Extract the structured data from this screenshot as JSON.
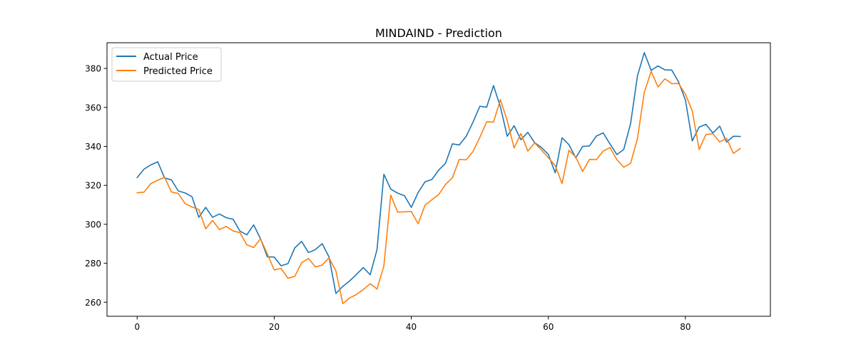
{
  "chart_data": {
    "type": "line",
    "title": "MINDAIND - Prediction",
    "xlabel": "",
    "ylabel": "",
    "xlim": [
      -4.4,
      92.4
    ],
    "ylim": [
      252.8,
      393.2
    ],
    "xticks": [
      0,
      20,
      40,
      60,
      80
    ],
    "yticks": [
      260,
      280,
      300,
      320,
      340,
      360,
      380
    ],
    "grid": false,
    "legend": {
      "placement": "top-left"
    },
    "series": [
      {
        "name": "Actual Price",
        "color": "#1f77b4",
        "x": [
          0,
          1,
          2,
          3,
          4,
          5,
          6,
          7,
          8,
          9,
          10,
          11,
          12,
          13,
          14,
          15,
          16,
          17,
          18,
          19,
          20,
          21,
          22,
          23,
          24,
          25,
          26,
          27,
          28,
          29,
          30,
          31,
          32,
          33,
          34,
          35,
          36,
          37,
          38,
          39,
          40,
          41,
          42,
          43,
          44,
          45,
          46,
          47,
          48,
          49,
          50,
          51,
          52,
          53,
          54,
          55,
          56,
          57,
          58,
          59,
          60,
          61,
          62,
          63,
          64,
          65,
          66,
          67,
          68,
          69,
          70,
          71,
          72,
          73,
          74,
          75,
          76,
          77,
          78,
          79,
          80,
          81,
          82,
          83,
          84,
          85,
          86,
          87,
          88
        ],
        "values": [
          324,
          328.3,
          330.5,
          332.1,
          323.8,
          322.8,
          317.1,
          316.1,
          314.2,
          303.6,
          308.7,
          303.6,
          305.3,
          303.4,
          302.6,
          296.5,
          294.6,
          299.7,
          292.6,
          283.3,
          283.2,
          278.7,
          279.8,
          287.9,
          291.2,
          285.5,
          287,
          290.1,
          283.2,
          264.5,
          268.1,
          270.9,
          274.3,
          277.8,
          274.1,
          287,
          325.7,
          318.1,
          316,
          314.7,
          308.7,
          316.3,
          321.8,
          323,
          327.8,
          331.4,
          341.3,
          340.7,
          345.1,
          352.4,
          360.6,
          360.1,
          371.2,
          360.3,
          345.2,
          350.6,
          343.4,
          347.2,
          341.9,
          339.4,
          335.9,
          326.4,
          344.4,
          340.9,
          334.1,
          340,
          340.2,
          345.3,
          346.9,
          341.2,
          335.8,
          338.4,
          351.7,
          376.2,
          388.1,
          379,
          381.3,
          379.3,
          379.2,
          373.1,
          363.8,
          342.8,
          349.9,
          351.3,
          346.9,
          350.4,
          342.2,
          345.2,
          345.1
        ]
      },
      {
        "name": "Predicted Price",
        "color": "#ff7f0e",
        "x": [
          0,
          1,
          2,
          3,
          4,
          5,
          6,
          7,
          8,
          9,
          10,
          11,
          12,
          13,
          14,
          15,
          16,
          17,
          18,
          19,
          20,
          21,
          22,
          23,
          24,
          25,
          26,
          27,
          28,
          29,
          30,
          31,
          32,
          33,
          34,
          35,
          36,
          37,
          38,
          39,
          40,
          41,
          42,
          43,
          44,
          45,
          46,
          47,
          48,
          49,
          50,
          51,
          52,
          53,
          54,
          55,
          56,
          57,
          58,
          59,
          60,
          61,
          62,
          63,
          64,
          65,
          66,
          67,
          68,
          69,
          70,
          71,
          72,
          73,
          74,
          75,
          76,
          77,
          78,
          79,
          80,
          81,
          82,
          83,
          84,
          85,
          86,
          87,
          88
        ],
        "values": [
          316.2,
          316.5,
          320.9,
          322.6,
          324.1,
          316.6,
          315.8,
          310.6,
          308.9,
          307.6,
          297.7,
          302,
          297.3,
          298.9,
          296.6,
          295.7,
          289.5,
          288.1,
          292.6,
          284.7,
          276.6,
          277.4,
          272.3,
          273.3,
          280.3,
          282.5,
          278.1,
          279.1,
          282.8,
          276.1,
          259.3,
          262.2,
          264,
          266.5,
          269.5,
          266.8,
          278.6,
          315,
          306.3,
          306.4,
          306.6,
          300.3,
          309.8,
          312.6,
          315.3,
          320.5,
          323.9,
          333.3,
          333.1,
          337.3,
          344.6,
          352.6,
          352.5,
          364,
          353.2,
          339.2,
          346.6,
          337.6,
          341.8,
          338.1,
          334.2,
          330.1,
          320.9,
          338,
          334.5,
          327.1,
          333.3,
          333.2,
          337.6,
          339.4,
          333.2,
          329.3,
          331.3,
          344,
          367.8,
          378.5,
          370.5,
          374.7,
          372.2,
          372.3,
          366.8,
          358.2,
          338.4,
          346.1,
          346.5,
          342.3,
          344.1,
          336.4,
          338.9
        ]
      }
    ]
  }
}
